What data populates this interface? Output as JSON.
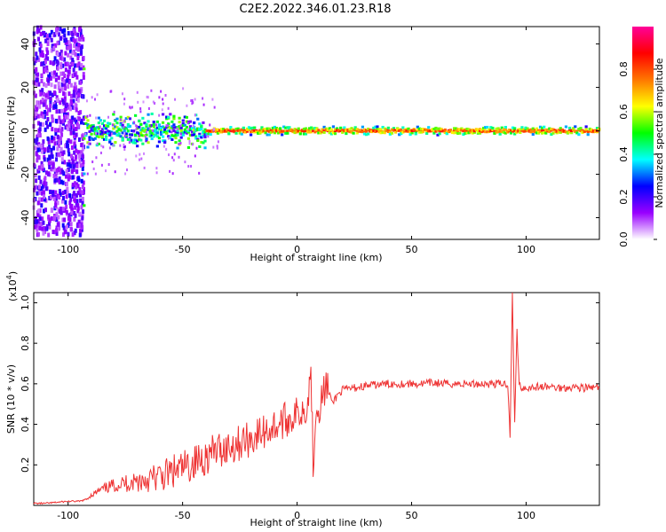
{
  "figure": {
    "title": "C2E2.2022.346.01.23.R18"
  },
  "chart_data": [
    {
      "type": "heatmap",
      "xlabel": "Height of straight line (km)",
      "ylabel": "Frequency (Hz)",
      "xlim": [
        -115,
        132
      ],
      "ylim": [
        -50,
        48
      ],
      "xticks": [
        -100,
        -50,
        0,
        50,
        100
      ],
      "yticks": [
        -40,
        -20,
        0,
        20,
        40
      ],
      "colorbar": {
        "label": "Normalized spectral amplitude",
        "range": [
          0,
          1
        ],
        "ticks": [
          0.0,
          0.2,
          0.4,
          0.6,
          0.8
        ],
        "colors": [
          "#ffffff",
          "#9900ff",
          "#0000ff",
          "#00ffff",
          "#00ff00",
          "#ffff00",
          "#ff7700",
          "#ff0000",
          "#ff0099"
        ]
      },
      "bands": [
        {
          "x": [
            -115,
            -93
          ],
          "spread_hz": 48,
          "amplitude": 0.12
        },
        {
          "x": [
            -93,
            -40
          ],
          "spread_hz": 7,
          "amplitude": 0.35
        },
        {
          "x": [
            -40,
            132
          ],
          "spread_hz": 2,
          "amplitude": 0.85
        }
      ]
    },
    {
      "type": "line",
      "xlabel": "Height of straight line (km)",
      "ylabel": "SNR (10 * v/v)",
      "y_multiplier": "(x10",
      "y_multiplier_exp": "4",
      "xlim": [
        -115,
        132
      ],
      "ylim": [
        0,
        1.05
      ],
      "xticks": [
        -100,
        -50,
        0,
        50,
        100
      ],
      "yticks": [
        0.2,
        0.4,
        0.6,
        0.8,
        1.0
      ],
      "series": [
        {
          "color": "#ee3333",
          "x": [
            -115,
            -110,
            -105,
            -100,
            -95,
            -92,
            -90,
            -85,
            -80,
            -75,
            -70,
            -65,
            -60,
            -55,
            -50,
            -45,
            -40,
            -35,
            -30,
            -25,
            -20,
            -15,
            -10,
            -5,
            0,
            3,
            5,
            6,
            7,
            8,
            10,
            13,
            15,
            18,
            20,
            25,
            30,
            35,
            40,
            45,
            50,
            55,
            60,
            65,
            70,
            75,
            80,
            85,
            90,
            92,
            93,
            94,
            95,
            96,
            97,
            98,
            100,
            105,
            110,
            115,
            120,
            125,
            132
          ],
          "y": [
            0.01,
            0.01,
            0.015,
            0.02,
            0.02,
            0.03,
            0.05,
            0.08,
            0.1,
            0.11,
            0.12,
            0.13,
            0.14,
            0.16,
            0.18,
            0.21,
            0.24,
            0.27,
            0.29,
            0.31,
            0.33,
            0.36,
            0.39,
            0.42,
            0.45,
            0.48,
            0.52,
            0.72,
            0.2,
            0.46,
            0.5,
            0.6,
            0.5,
            0.55,
            0.57,
            0.58,
            0.59,
            0.595,
            0.6,
            0.6,
            0.6,
            0.6,
            0.605,
            0.6,
            0.6,
            0.6,
            0.6,
            0.6,
            0.6,
            0.6,
            0.35,
            1.04,
            0.4,
            0.86,
            0.6,
            0.58,
            0.58,
            0.585,
            0.585,
            0.58,
            0.585,
            0.58,
            0.58
          ]
        }
      ]
    }
  ]
}
